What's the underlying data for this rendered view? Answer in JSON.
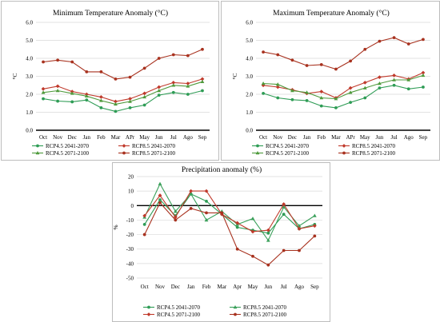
{
  "charts": [
    {
      "type": "line",
      "title": "Minimum Temperature Anomaly (°C)",
      "ylabel": "°C",
      "ylim": [
        0,
        6
      ],
      "yticks": [
        "0.0",
        "1.0",
        "2.0",
        "3.0",
        "4.0",
        "5.0",
        "6.0"
      ],
      "categories": [
        "Oct",
        "Nov",
        "Dec",
        "Jan",
        "Feb",
        "Mar",
        "APr",
        "May",
        "Jun",
        "Jul",
        "Ago",
        "Sep"
      ],
      "series": [
        {
          "name": "RCP4.5 2041-2070",
          "color": "#2e9c55",
          "marker": "circle",
          "values": [
            1.75,
            1.62,
            1.58,
            1.68,
            1.25,
            1.05,
            1.25,
            1.4,
            1.95,
            2.1,
            2.0,
            2.2
          ]
        },
        {
          "name": "RCP8.5 2041-2070",
          "color": "#c0392b",
          "marker": "diamond",
          "values": [
            2.3,
            2.45,
            2.15,
            2.0,
            1.85,
            1.6,
            1.75,
            2.05,
            2.4,
            2.65,
            2.6,
            2.85
          ]
        },
        {
          "name": "RCP4.5 2071-2100",
          "color": "#4f9a3c",
          "marker": "triangle",
          "values": [
            2.1,
            2.2,
            2.05,
            1.9,
            1.65,
            1.45,
            1.6,
            1.85,
            2.2,
            2.5,
            2.45,
            2.7
          ]
        },
        {
          "name": "RCP8.5 2071-2100",
          "color": "#a8321f",
          "marker": "circle",
          "values": [
            3.8,
            3.9,
            3.8,
            3.25,
            3.25,
            2.85,
            2.95,
            3.45,
            4.0,
            4.2,
            4.15,
            4.5
          ]
        }
      ]
    },
    {
      "type": "line",
      "title": "Maximum Temperature Anomaly (°C)",
      "ylabel": "°C",
      "ylim": [
        0,
        6
      ],
      "yticks": [
        "0.0",
        "1.0",
        "2.0",
        "3.0",
        "4.0",
        "5.0",
        "6.0"
      ],
      "categories": [
        "Oct",
        "Nov",
        "Dec",
        "Jan",
        "Feb",
        "Mar",
        "APr",
        "May",
        "Jun",
        "Jul",
        "Ago",
        "Sep"
      ],
      "series": [
        {
          "name": "RCP4.5 2041-2070",
          "color": "#2e9c55",
          "marker": "circle",
          "values": [
            2.05,
            1.8,
            1.7,
            1.65,
            1.35,
            1.25,
            1.55,
            1.8,
            2.35,
            2.5,
            2.3,
            2.4
          ]
        },
        {
          "name": "RCP8.5 2041-2070",
          "color": "#c0392b",
          "marker": "diamond",
          "values": [
            2.5,
            2.4,
            2.25,
            2.05,
            2.15,
            1.8,
            2.35,
            2.65,
            2.95,
            3.05,
            2.85,
            3.2
          ]
        },
        {
          "name": "RCP4.5 2071-2100",
          "color": "#4f9a3c",
          "marker": "triangle",
          "values": [
            2.6,
            2.55,
            2.2,
            2.1,
            1.8,
            1.75,
            2.1,
            2.35,
            2.6,
            2.8,
            2.8,
            3.05
          ]
        },
        {
          "name": "RCP8.5 2071-2100",
          "color": "#a8321f",
          "marker": "circle",
          "values": [
            4.35,
            4.2,
            3.9,
            3.6,
            3.65,
            3.4,
            3.85,
            4.5,
            4.95,
            5.15,
            4.8,
            5.05
          ]
        }
      ]
    },
    {
      "type": "line",
      "title": "Precipitation anomaly (%)",
      "ylabel": "%",
      "ylim": [
        -50,
        20
      ],
      "yticks": [
        "-50",
        "-40",
        "-30",
        "-20",
        "-10",
        "0",
        "10",
        "20"
      ],
      "categories": [
        "Oct",
        "Nov",
        "Dec",
        "Jan",
        "Feb",
        "Mar",
        "Apr",
        "May",
        "Jun",
        "Jul",
        "Ago",
        "Sep"
      ],
      "series": [
        {
          "name": "RCP4.5 2041-2070",
          "color": "#2e9c55",
          "marker": "circle",
          "values": [
            -13,
            4,
            -7,
            8,
            3,
            -6,
            -15,
            -17,
            -19,
            -6,
            -16,
            -13
          ]
        },
        {
          "name": "RCP8.5 2041-2070",
          "color": "#3aa05a",
          "marker": "triangle",
          "values": [
            -8,
            15,
            -4,
            8,
            -10,
            -4,
            -13,
            -9,
            -24,
            -1,
            -14,
            -7
          ]
        },
        {
          "name": "RCP4.5 2071-2100",
          "color": "#c0392b",
          "marker": "diamond",
          "values": [
            -7,
            7,
            -8,
            10,
            10,
            -6,
            -12,
            -18,
            -17,
            1,
            -16,
            -14
          ]
        },
        {
          "name": "RCP8.5 2071-2100",
          "color": "#a8321f",
          "marker": "circle",
          "values": [
            -20,
            2,
            -10,
            -2,
            -5,
            -5,
            -30,
            -35,
            -41,
            -31,
            -31,
            -21
          ]
        }
      ]
    }
  ]
}
